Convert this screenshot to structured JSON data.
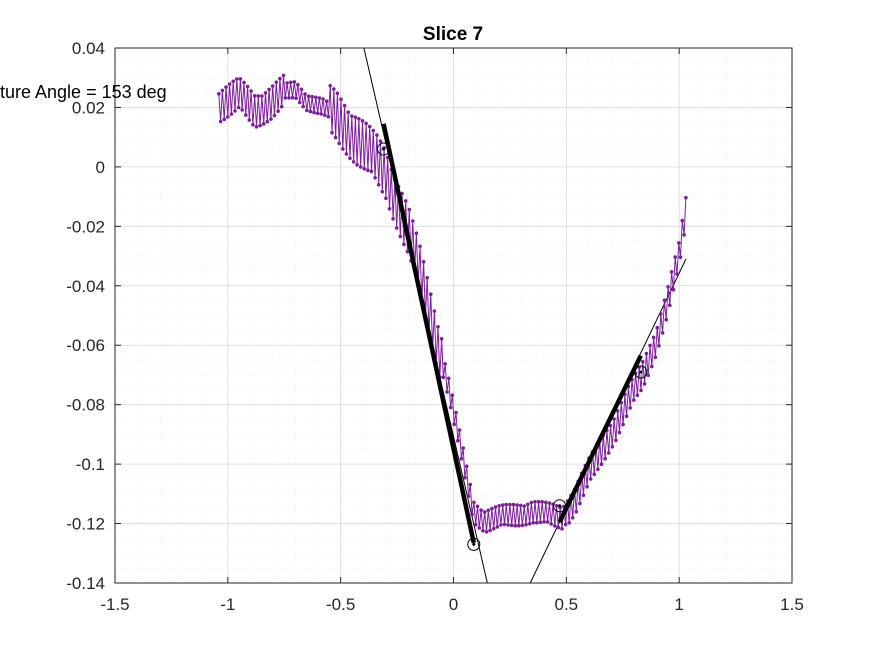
{
  "chart_data": {
    "type": "line",
    "title": "Slice 7",
    "xlabel": "",
    "ylabel": "",
    "xlim": [
      -1.5,
      1.5
    ],
    "ylim": [
      -0.14,
      0.04
    ],
    "x_ticks": [
      -1.5,
      -1,
      -0.5,
      0,
      0.5,
      1,
      1.5
    ],
    "x_tick_labels": [
      "-1.5",
      "-1",
      "-0.5",
      "0",
      "0.5",
      "1",
      "1.5"
    ],
    "y_ticks": [
      0.04,
      0.02,
      0,
      -0.02,
      -0.04,
      -0.06,
      -0.08,
      -0.1,
      -0.12,
      -0.14
    ],
    "y_tick_labels": [
      "0.04",
      "0.02",
      "0",
      "-0.02",
      "-0.04",
      "-0.06",
      "-0.08",
      "-0.1",
      "-0.12",
      "-0.14"
    ],
    "grid": "major and minor",
    "annotation": "ture Angle = 153 deg",
    "series": [
      {
        "name": "slice profile",
        "color": "#7e1e9c",
        "marker": "dot",
        "x": [
          -1.04,
          -0.95,
          -0.88,
          -0.8,
          -0.75,
          -0.7,
          -0.65,
          -0.58,
          -0.52,
          -0.46,
          -0.4,
          -0.34,
          -0.3,
          -0.25,
          -0.2,
          -0.15,
          -0.1,
          -0.06,
          -0.02,
          0.02,
          0.06,
          0.09,
          0.14,
          0.2,
          0.28,
          0.35,
          0.42,
          0.48,
          0.54,
          0.6,
          0.66,
          0.72,
          0.78,
          0.84,
          0.9,
          0.95,
          1.0,
          1.03
        ],
        "y": [
          0.021,
          0.024,
          0.019,
          0.022,
          0.025,
          0.026,
          0.022,
          0.02,
          0.017,
          0.012,
          0.007,
          0.002,
          -0.002,
          -0.012,
          -0.022,
          -0.035,
          -0.05,
          -0.062,
          -0.075,
          -0.09,
          -0.105,
          -0.116,
          -0.119,
          -0.118,
          -0.117,
          -0.116,
          -0.117,
          -0.118,
          -0.112,
          -0.103,
          -0.095,
          -0.087,
          -0.078,
          -0.07,
          -0.058,
          -0.045,
          -0.03,
          -0.015
        ]
      }
    ],
    "fit_lines": [
      {
        "name": "left fit",
        "x": [
          -0.397,
          0.15
        ],
        "y": [
          0.04,
          -0.14
        ],
        "color": "#000000"
      },
      {
        "name": "right fit",
        "x": [
          0.34,
          1.03
        ],
        "y": [
          -0.14,
          -0.031
        ],
        "color": "#000000"
      }
    ],
    "fit_segments": [
      {
        "name": "left segment",
        "x": [
          -0.31,
          0.09
        ],
        "y": [
          0.0145,
          -0.1265
        ],
        "color": "#000000"
      },
      {
        "name": "right segment",
        "x": [
          0.47,
          0.83
        ],
        "y": [
          -0.1195,
          -0.0635
        ],
        "color": "#000000"
      }
    ],
    "circle_markers": [
      {
        "x": -0.31,
        "y": 0.006
      },
      {
        "x": 0.09,
        "y": -0.127
      },
      {
        "x": 0.47,
        "y": -0.114
      },
      {
        "x": 0.83,
        "y": -0.069
      }
    ]
  }
}
